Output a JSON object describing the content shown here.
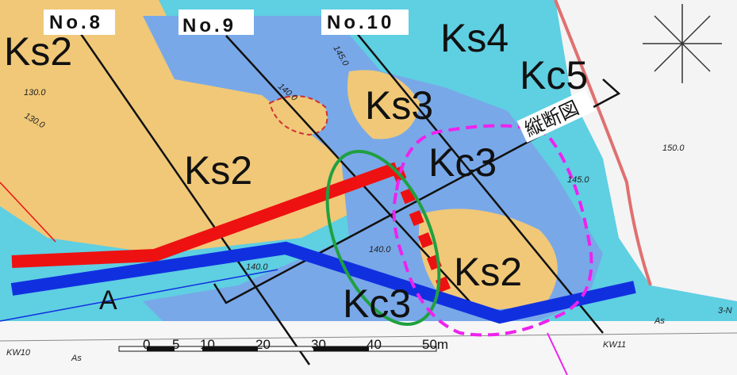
{
  "sections": [
    {
      "label": "No.8"
    },
    {
      "label": "No.9"
    },
    {
      "label": "No.10"
    }
  ],
  "units": [
    {
      "label": "Ks2"
    },
    {
      "label": "Ks4"
    },
    {
      "label": "Kc5"
    },
    {
      "label": "Ks3"
    },
    {
      "label": "Ks2"
    },
    {
      "label": "Kc3"
    },
    {
      "label": "Kc3"
    },
    {
      "label": "Ks2"
    }
  ],
  "annotations": {
    "profile": "縦断図",
    "point": "A"
  },
  "contours": [
    "130.0",
    "130.0",
    "140.0",
    "140.0",
    "145.0",
    "150.0",
    "145.0",
    "140.0"
  ],
  "markers": [
    "KW10",
    "KW11",
    "3-N",
    "As",
    "As"
  ],
  "scale": {
    "ticks": [
      "0",
      "5",
      "10",
      "20",
      "30",
      "40",
      "50m"
    ]
  }
}
